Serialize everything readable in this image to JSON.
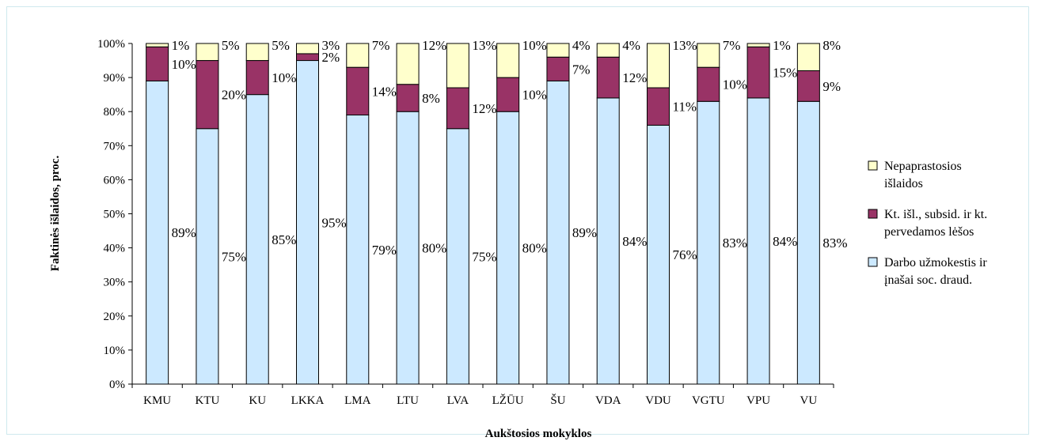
{
  "chart_data": {
    "type": "bar",
    "stacked": true,
    "percent": true,
    "xlabel": "Aukštosios mokyklos",
    "ylabel": "Faktinės išlaidos, proc.",
    "ylim": [
      0,
      100
    ],
    "yticks": [
      "0%",
      "10%",
      "20%",
      "30%",
      "40%",
      "50%",
      "60%",
      "70%",
      "80%",
      "90%",
      "100%"
    ],
    "categories": [
      "KMU",
      "KTU",
      "KU",
      "LKKA",
      "LMA",
      "LTU",
      "LVA",
      "LŽŪU",
      "ŠU",
      "VDA",
      "VDU",
      "VGTU",
      "VPU",
      "VU"
    ],
    "series": [
      {
        "name": "Darbo užmokestis ir įnašai soc. draud.",
        "color": "#cce9ff",
        "values": [
          89,
          75,
          85,
          95,
          79,
          80,
          75,
          80,
          89,
          84,
          76,
          83,
          84,
          83
        ],
        "labels": [
          "89%",
          "75%",
          "85%",
          "95%",
          "79%",
          "80%",
          "75%",
          "80%",
          "89%",
          "84%",
          "76%",
          "83%",
          "84%",
          "83%"
        ]
      },
      {
        "name": "Kt. išl., subsid. ir kt. pervedamos lėšos",
        "color": "#993366",
        "values": [
          10,
          20,
          10,
          2,
          14,
          8,
          12,
          10,
          7,
          12,
          11,
          10,
          15,
          9
        ],
        "labels": [
          "10%",
          "20%",
          "10%",
          "2%",
          "14%",
          "8%",
          "12%",
          "10%",
          "7%",
          "12%",
          "11%",
          "10%",
          "15%",
          "9%"
        ]
      },
      {
        "name": "Nepaprastosios išlaidos",
        "color": "#ffffcc",
        "values": [
          1,
          5,
          5,
          3,
          7,
          12,
          13,
          10,
          4,
          4,
          13,
          7,
          1,
          8
        ],
        "labels": [
          "1%",
          "5%",
          "5%",
          "3%",
          "7%",
          "12%",
          "13%",
          "10%",
          "4%",
          "4%",
          "13%",
          "7%",
          "1%",
          "8%"
        ]
      }
    ],
    "legend": {
      "position": "right",
      "entries": [
        {
          "text": [
            "Nepaprastosios",
            "išlaidos"
          ],
          "series": 2
        },
        {
          "text": [
            "Kt. išl., subsid. ir kt.",
            "pervedamos lėšos"
          ],
          "series": 1
        },
        {
          "text": [
            "Darbo užmokestis ir",
            "įnašai soc. draud."
          ],
          "series": 0
        }
      ]
    }
  }
}
